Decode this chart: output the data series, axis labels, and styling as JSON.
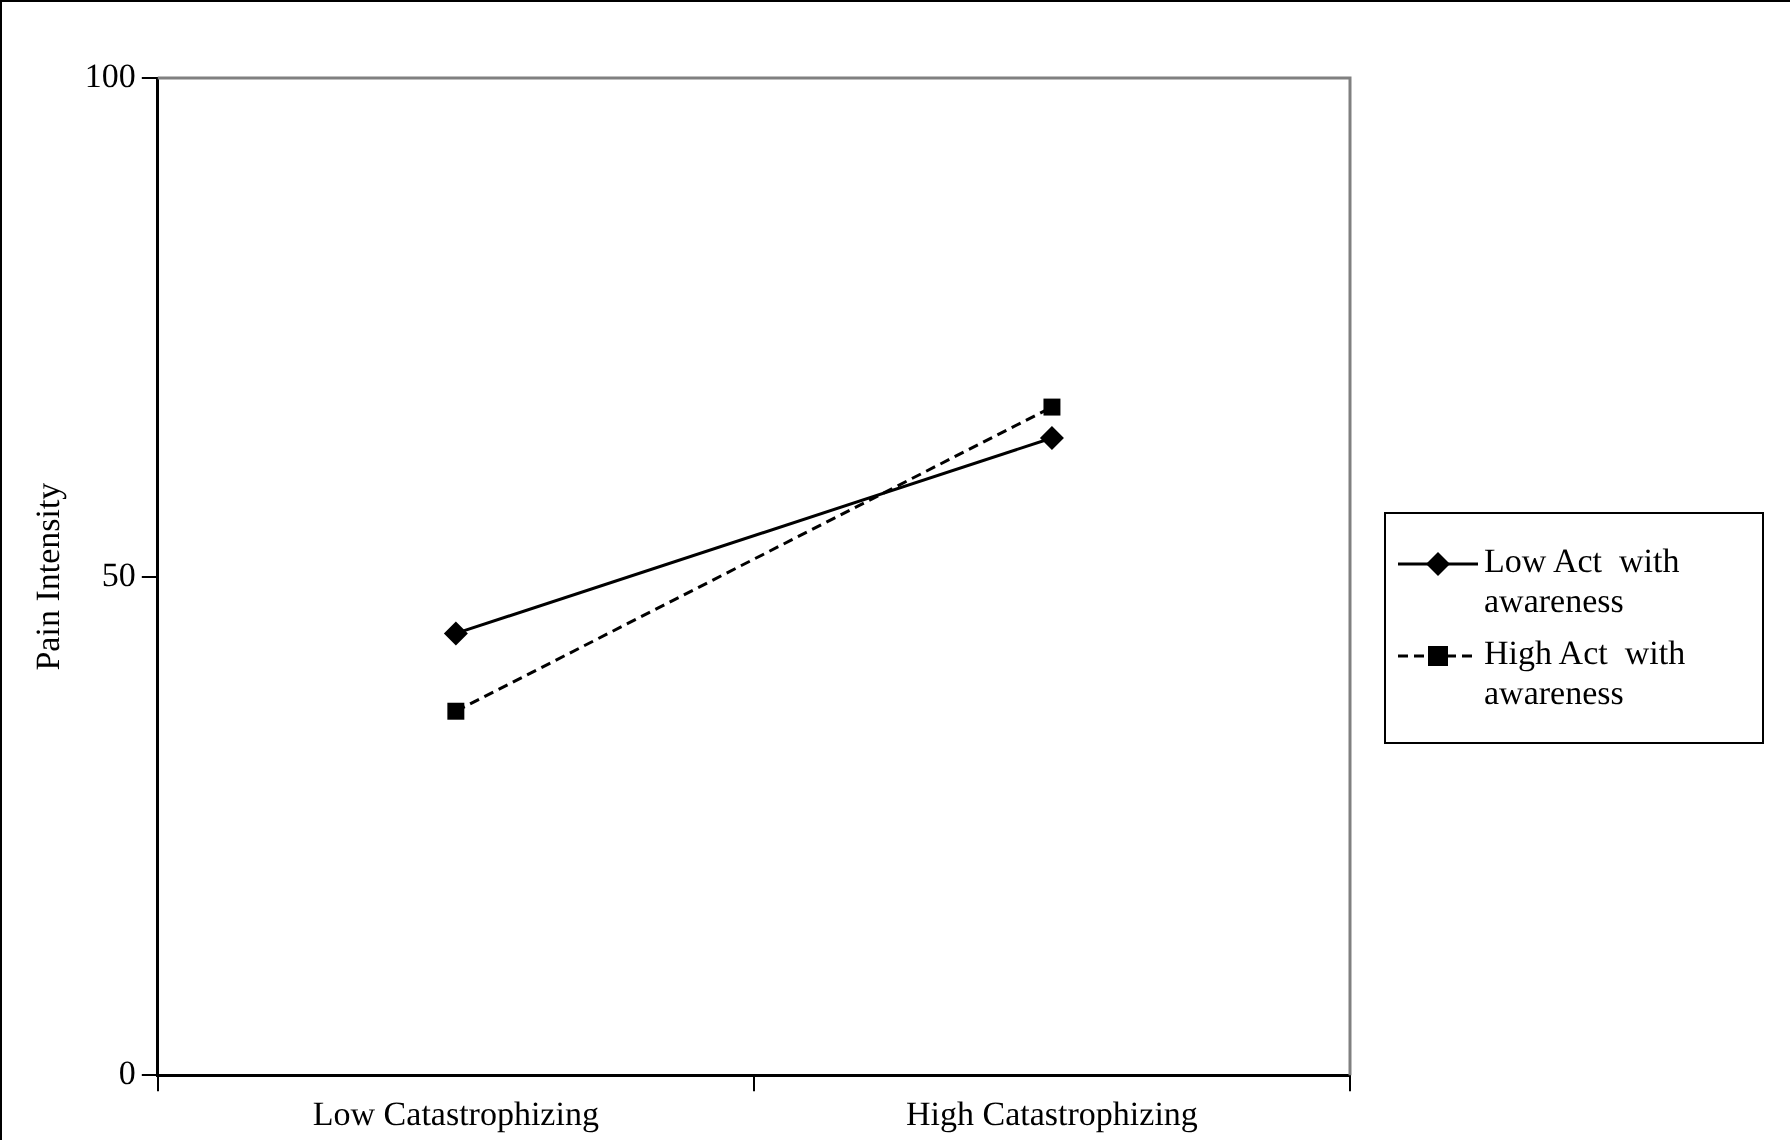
{
  "chart_data": {
    "type": "line",
    "ylabel": "Pain Intensity",
    "categories": [
      "Low Catastrophizing",
      "High Catastrophizing"
    ],
    "series": [
      {
        "name": "Low Act  with awareness",
        "color": "#000000",
        "values": [
          44.3,
          63.9
        ],
        "marker": "diamond",
        "line_style": "solid"
      },
      {
        "name": "High Act  with awareness",
        "color": "#000000",
        "values": [
          36.5,
          67.0
        ],
        "marker": "square",
        "line_style": "dashed"
      }
    ],
    "ylim": [
      0,
      100
    ],
    "yticks": [
      0,
      50,
      100
    ],
    "grid": false,
    "legend": "right"
  }
}
